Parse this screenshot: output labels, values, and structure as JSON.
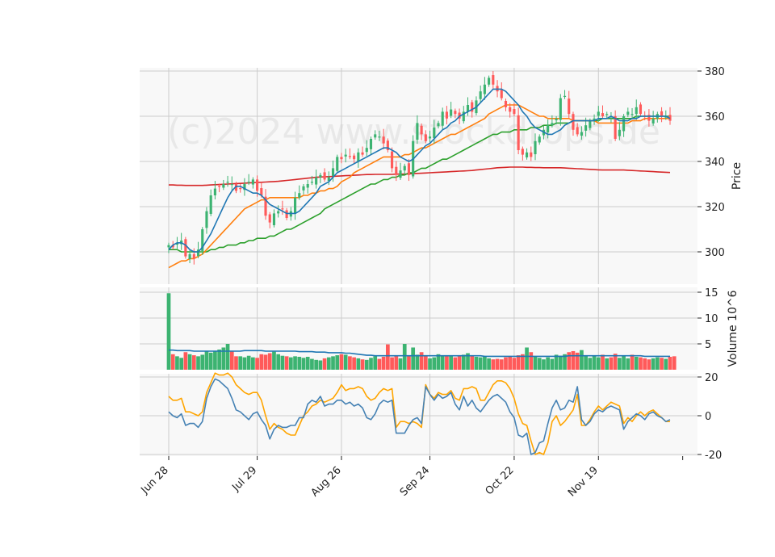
{
  "chart_data": {
    "type": "candlestick",
    "watermark": "(c)2024 www.stockdrops.de",
    "colors": {
      "up": "#3cb371",
      "down": "#ff5a5a",
      "panel_bg": "#f8f8f8",
      "grid": "#cccccc",
      "ma_short": "#1f77b4",
      "ma_mid": "#ff7f0e",
      "ma_long": "#2ca02c",
      "ma_200": "#d62728",
      "volume_avg": "#1f77b4",
      "osc_blue": "#4682b4",
      "osc_orange": "#ffa500"
    },
    "x_ticks": [
      "Jun 28",
      "Jul 29",
      "Aug 26",
      "Sep 24",
      "Oct 22",
      "Nov 19",
      ""
    ],
    "x_tick_index": [
      0,
      21,
      41,
      62,
      82,
      102,
      122
    ],
    "price_panel": {
      "ylabel": "Price",
      "ylim": [
        290,
        381
      ],
      "y_ticks": [
        300,
        320,
        340,
        360,
        380
      ]
    },
    "volume_panel": {
      "ylabel": "Volume  10^6",
      "ylim": [
        0,
        15
      ],
      "y_ticks": [
        5,
        10,
        15
      ]
    },
    "oscillator_panel": {
      "ylim": [
        -21,
        22
      ],
      "y_ticks": [
        -20,
        0,
        20
      ]
    },
    "close_series": [
      303,
      302,
      304,
      305,
      298,
      299,
      297,
      301,
      310,
      318,
      325,
      328,
      329,
      330,
      331,
      330,
      327,
      328,
      330,
      331,
      332,
      327,
      325,
      316,
      313,
      317,
      318,
      319,
      315,
      318,
      324,
      326,
      329,
      330,
      331,
      333,
      334,
      332,
      333,
      337,
      342,
      341,
      343,
      342,
      341,
      344,
      343,
      346,
      350,
      352,
      351,
      348,
      345,
      337,
      334,
      336,
      338,
      334,
      349,
      357,
      352,
      349,
      351,
      355,
      357,
      362,
      359,
      363,
      361,
      359,
      362,
      365,
      362,
      367,
      371,
      374,
      377,
      374,
      371,
      368,
      364,
      362,
      361,
      345,
      343,
      344,
      342,
      349,
      351,
      354,
      356,
      357,
      359,
      368,
      369,
      361,
      354,
      352,
      353,
      356,
      358,
      359,
      362,
      360,
      361,
      360,
      350,
      354,
      360,
      362,
      361,
      364,
      361,
      360,
      358,
      359,
      361,
      360,
      360,
      358
    ],
    "ma_short_series": [
      301,
      303,
      304,
      304,
      303,
      301,
      300,
      300,
      302,
      305,
      308,
      312,
      316,
      320,
      324,
      327,
      329,
      329,
      328,
      327,
      326,
      326,
      325,
      323,
      321,
      320,
      319,
      318,
      317,
      317,
      317,
      318,
      320,
      322,
      324,
      326,
      329,
      330,
      331,
      333,
      335,
      336,
      337,
      338,
      339,
      340,
      341,
      342,
      343,
      344,
      345,
      346,
      346,
      345,
      344,
      342,
      341,
      340,
      341,
      343,
      345,
      347,
      348,
      350,
      352,
      354,
      355,
      357,
      358,
      360,
      361,
      362,
      363,
      364,
      366,
      368,
      370,
      372,
      372,
      372,
      371,
      369,
      367,
      365,
      362,
      360,
      357,
      355,
      354,
      353,
      352,
      352,
      353,
      354,
      356,
      357,
      358,
      358,
      358,
      358,
      358,
      358,
      359,
      359,
      359,
      360,
      359,
      358,
      358,
      358,
      359,
      359,
      360,
      360,
      360,
      360,
      360,
      360,
      360,
      359
    ],
    "ma_mid_series": [
      293,
      294,
      295,
      296,
      296,
      297,
      297,
      298,
      299,
      301,
      303,
      305,
      307,
      309,
      311,
      313,
      315,
      317,
      319,
      320,
      321,
      322,
      323,
      323,
      324,
      324,
      324,
      324,
      324,
      324,
      324,
      324,
      325,
      325,
      326,
      326,
      327,
      327,
      328,
      328,
      329,
      331,
      332,
      333,
      335,
      336,
      337,
      338,
      339,
      340,
      341,
      342,
      342,
      342,
      342,
      342,
      343,
      343,
      344,
      345,
      346,
      346,
      347,
      348,
      349,
      350,
      351,
      352,
      352,
      353,
      354,
      355,
      356,
      357,
      358,
      359,
      361,
      362,
      363,
      364,
      365,
      365,
      365,
      365,
      364,
      363,
      362,
      361,
      360,
      360,
      359,
      359,
      359,
      359,
      359,
      359,
      358,
      358,
      358,
      358,
      358,
      358,
      357,
      357,
      357,
      357,
      357,
      357,
      357,
      357,
      358,
      358,
      358,
      359,
      359,
      359,
      359,
      359,
      359,
      359
    ],
    "ma_long_series": [
      301,
      301,
      301,
      300,
      300,
      300,
      300,
      300,
      300,
      300,
      301,
      301,
      302,
      302,
      303,
      303,
      303,
      304,
      304,
      305,
      305,
      306,
      306,
      306,
      307,
      307,
      308,
      309,
      310,
      310,
      311,
      312,
      313,
      314,
      315,
      316,
      317,
      319,
      320,
      321,
      322,
      323,
      324,
      325,
      326,
      327,
      328,
      329,
      330,
      330,
      331,
      332,
      332,
      333,
      333,
      334,
      334,
      335,
      335,
      336,
      337,
      337,
      338,
      339,
      340,
      341,
      341,
      342,
      343,
      344,
      345,
      346,
      347,
      348,
      349,
      350,
      351,
      352,
      352,
      353,
      353,
      353,
      354,
      354,
      354,
      354,
      355,
      355,
      355,
      356,
      356,
      356,
      357,
      357,
      357,
      357,
      358,
      358,
      358,
      358,
      358,
      358,
      358,
      359,
      359,
      359,
      359,
      359,
      359,
      359,
      359,
      360,
      360,
      360,
      360,
      360,
      360,
      360,
      360,
      360
    ],
    "ma_200_series": [
      329.6,
      329.6,
      329.5,
      329.5,
      329.4,
      329.4,
      329.4,
      329.4,
      329.4,
      329.5,
      329.6,
      329.7,
      329.8,
      329.9,
      330.0,
      330.1,
      330.2,
      330.3,
      330.4,
      330.5,
      330.6,
      330.7,
      330.8,
      330.9,
      331.0,
      331.1,
      331.2,
      331.4,
      331.6,
      331.8,
      332.0,
      332.2,
      332.4,
      332.6,
      332.8,
      333.0,
      333.1,
      333.2,
      333.3,
      333.4,
      333.5,
      333.6,
      333.7,
      333.8,
      333.9,
      334.0,
      334.1,
      334.2,
      334.2,
      334.3,
      334.3,
      334.3,
      334.3,
      334.3,
      334.4,
      334.4,
      334.4,
      334.5,
      334.6,
      334.7,
      334.8,
      334.9,
      335.0,
      335.1,
      335.2,
      335.3,
      335.4,
      335.5,
      335.6,
      335.7,
      335.8,
      335.9,
      336.0,
      336.2,
      336.4,
      336.6,
      336.8,
      337.0,
      337.2,
      337.3,
      337.4,
      337.5,
      337.5,
      337.5,
      337.5,
      337.4,
      337.4,
      337.3,
      337.3,
      337.2,
      337.2,
      337.2,
      337.2,
      337.2,
      337.1,
      337.0,
      336.9,
      336.8,
      336.7,
      336.6,
      336.5,
      336.4,
      336.3,
      336.2,
      336.2,
      336.2,
      336.2,
      336.2,
      336.2,
      336.1,
      336.0,
      335.9,
      335.8,
      335.7,
      335.6,
      335.5,
      335.4,
      335.3,
      335.2,
      335.1
    ],
    "volume_series": [
      14.8,
      3.0,
      2.6,
      2.3,
      3.4,
      3.0,
      2.8,
      2.6,
      2.9,
      3.6,
      3.3,
      3.6,
      3.9,
      4.3,
      5.0,
      3.6,
      2.6,
      2.6,
      2.4,
      2.7,
      2.4,
      2.3,
      3.0,
      2.9,
      3.2,
      3.5,
      3.0,
      2.7,
      2.6,
      2.4,
      2.6,
      2.5,
      2.3,
      2.5,
      2.1,
      1.9,
      1.8,
      2.2,
      2.4,
      2.6,
      2.8,
      3.0,
      2.9,
      2.6,
      2.4,
      2.2,
      2.0,
      1.9,
      2.3,
      2.6,
      2.1,
      2.5,
      4.9,
      2.4,
      2.6,
      2.2,
      5.0,
      2.8,
      4.3,
      2.9,
      3.4,
      2.6,
      2.2,
      2.4,
      3.0,
      2.6,
      2.8,
      2.7,
      2.4,
      2.6,
      2.9,
      3.2,
      2.7,
      2.5,
      2.4,
      2.6,
      2.2,
      2.0,
      2.1,
      2.0,
      2.4,
      2.5,
      2.3,
      2.8,
      3.0,
      4.3,
      3.4,
      2.5,
      2.3,
      2.0,
      2.4,
      2.1,
      2.9,
      2.7,
      3.0,
      3.4,
      3.6,
      3.3,
      3.8,
      2.6,
      2.3,
      2.6,
      2.4,
      2.9,
      2.2,
      2.4,
      3.1,
      2.3,
      2.6,
      2.2,
      2.9,
      2.5,
      2.4,
      2.2,
      2.0,
      2.2,
      2.4,
      2.3,
      2.1,
      2.5,
      2.6
    ],
    "volume_avg_series": [
      3.8,
      3.8,
      3.7,
      3.7,
      3.7,
      3.7,
      3.6,
      3.6,
      3.6,
      3.6,
      3.6,
      3.6,
      3.6,
      3.6,
      3.6,
      3.6,
      3.6,
      3.6,
      3.7,
      3.7,
      3.7,
      3.7,
      3.7,
      3.6,
      3.6,
      3.6,
      3.6,
      3.6,
      3.6,
      3.6,
      3.6,
      3.5,
      3.5,
      3.5,
      3.5,
      3.4,
      3.4,
      3.4,
      3.3,
      3.3,
      3.3,
      3.3,
      3.2,
      3.2,
      3.1,
      3.0,
      2.9,
      2.8,
      2.8,
      2.7,
      2.7,
      2.7,
      2.7,
      2.7,
      2.7,
      2.7,
      2.7,
      2.7,
      2.7,
      2.7,
      2.7,
      2.7,
      2.7,
      2.7,
      2.7,
      2.7,
      2.7,
      2.7,
      2.7,
      2.7,
      2.7,
      2.7,
      2.7,
      2.7,
      2.7,
      2.6,
      2.6,
      2.6,
      2.6,
      2.6,
      2.6,
      2.6,
      2.6,
      2.6,
      2.6,
      2.6,
      2.6,
      2.6,
      2.6,
      2.6,
      2.6,
      2.6,
      2.6,
      2.6,
      2.6,
      2.7,
      2.7,
      2.7,
      2.7,
      2.7,
      2.7,
      2.7,
      2.7,
      2.7,
      2.7,
      2.7,
      2.7,
      2.7,
      2.7,
      2.7,
      2.7,
      2.7,
      2.7,
      2.6,
      2.6,
      2.6,
      2.6,
      2.6,
      2.6,
      2.6
    ],
    "osc_blue_series": [
      2,
      0,
      -1,
      1,
      -5,
      -4,
      -4,
      -6,
      -3,
      9,
      15,
      19,
      18,
      16,
      14,
      9,
      3,
      2,
      0,
      -2,
      1,
      2,
      -2,
      -5,
      -12,
      -7,
      -5,
      -6,
      -6,
      -5,
      -5,
      -1,
      -1,
      6,
      8,
      7,
      10,
      5,
      6,
      6,
      8,
      8,
      6,
      7,
      5,
      6,
      4,
      -1,
      -2,
      1,
      6,
      8,
      7,
      8,
      -9,
      -9,
      -9,
      -5,
      -2,
      -1,
      -4,
      15,
      11,
      8,
      11,
      9,
      10,
      12,
      6,
      3,
      10,
      5,
      8,
      4,
      2,
      5,
      8,
      10,
      11,
      9,
      7,
      2,
      -1,
      -10,
      -11,
      -9,
      -20,
      -19,
      -14,
      -13,
      -4,
      4,
      8,
      3,
      4,
      8,
      7,
      15,
      -2,
      -5,
      -3,
      1,
      3,
      2,
      4,
      5,
      4,
      3,
      -7,
      -3,
      -1,
      1,
      0,
      -2,
      1,
      2,
      0,
      -1,
      -3,
      -2
    ],
    "osc_orange_series": [
      10,
      8,
      8,
      9,
      2,
      2,
      1,
      0,
      2,
      12,
      17,
      22,
      21,
      21,
      22,
      20,
      16,
      14,
      12,
      11,
      12,
      12,
      8,
      0,
      -7,
      -4,
      -6,
      -7,
      -9,
      -10,
      -10,
      -5,
      0,
      2,
      5,
      6,
      8,
      7,
      8,
      9,
      12,
      16,
      13,
      14,
      14,
      15,
      14,
      10,
      8,
      9,
      12,
      14,
      13,
      14,
      -6,
      -3,
      -3,
      -4,
      -3,
      -4,
      -6,
      16,
      11,
      9,
      12,
      11,
      11,
      13,
      9,
      8,
      14,
      14,
      15,
      14,
      8,
      8,
      12,
      16,
      18,
      18,
      17,
      14,
      9,
      1,
      -4,
      -5,
      -13,
      -20,
      -19,
      -20,
      -14,
      -3,
      0,
      -5,
      -3,
      0,
      3,
      11,
      -5,
      -5,
      -2,
      2,
      5,
      3,
      5,
      7,
      6,
      5,
      -4,
      -1,
      -3,
      0,
      2,
      0,
      2,
      3,
      1,
      -1,
      -3,
      -3
    ]
  }
}
